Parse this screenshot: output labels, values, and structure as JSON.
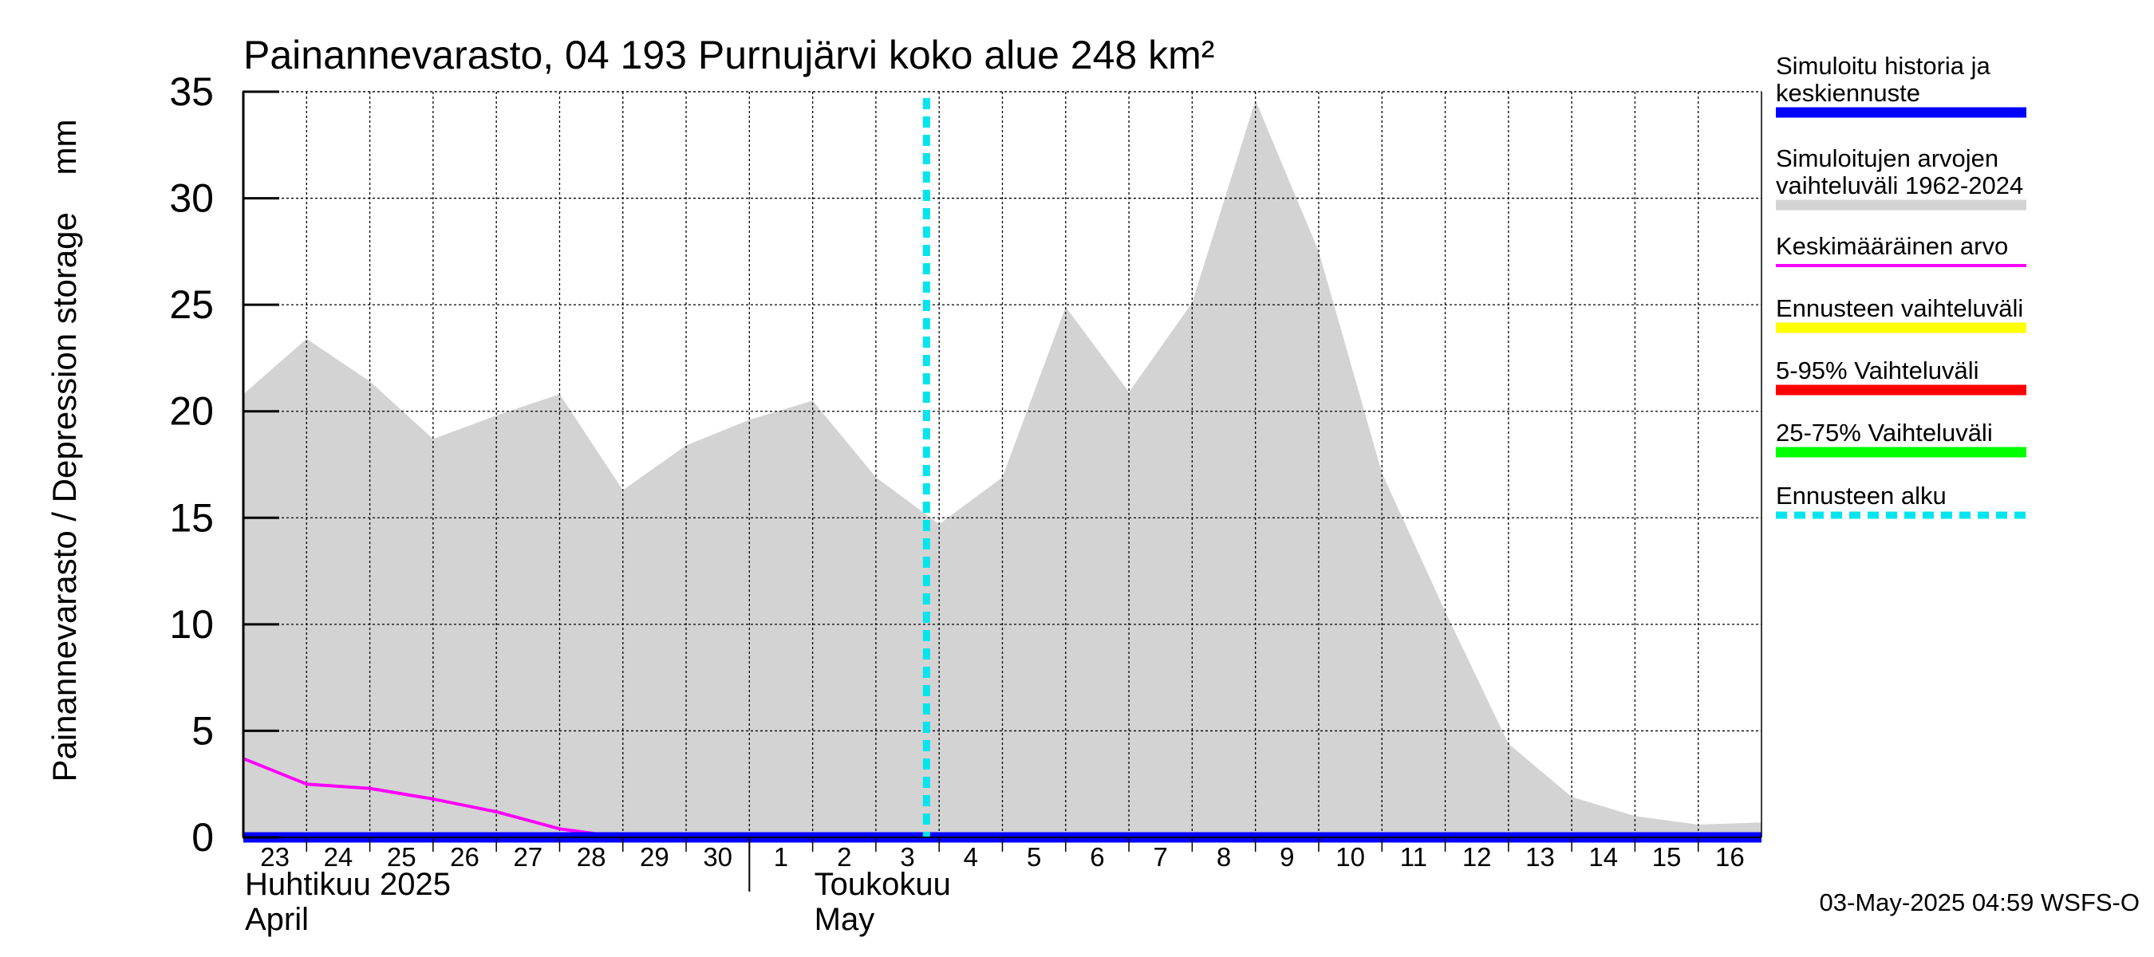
{
  "chart_data": {
    "type": "area",
    "title": "Painannevarasto, 04 193 Purnujärvi koko alue 248 km²",
    "ylabel": "Painannevarasto / Depression storage    mm",
    "ylim": [
      0,
      35
    ],
    "yticks": [
      0,
      5,
      10,
      15,
      20,
      25,
      30,
      35
    ],
    "x_labels": [
      "23",
      "24",
      "25",
      "26",
      "27",
      "28",
      "29",
      "30",
      "1",
      "2",
      "3",
      "4",
      "5",
      "6",
      "7",
      "8",
      "9",
      "10",
      "11",
      "12",
      "13",
      "14",
      "15",
      "16"
    ],
    "month_labels": [
      {
        "fi": "Huhtikuu  2025",
        "en": "April"
      },
      {
        "fi": "Toukokuu",
        "en": "May"
      }
    ],
    "series": [
      {
        "name": "Simuloitujen arvojen vaihteluväli 1962-2024",
        "color": "#d3d3d3",
        "kind": "range",
        "upper": [
          20.8,
          23.4,
          21.4,
          18.7,
          19.8,
          20.8,
          16.3,
          18.4,
          19.6,
          20.5,
          16.9,
          14.7,
          16.9,
          24.9,
          20.9,
          25.1,
          34.6,
          27.5,
          17.1,
          10.6,
          4.4,
          1.9,
          1.0,
          0.6,
          0.7
        ],
        "lower": [
          0,
          0,
          0,
          0,
          0,
          0,
          0,
          0,
          0,
          0,
          0,
          0,
          0,
          0,
          0,
          0,
          0,
          0,
          0,
          0,
          0,
          0,
          0,
          0,
          0
        ]
      },
      {
        "name": "Keskimääräinen arvo",
        "color": "#ff00ff",
        "kind": "line",
        "values": [
          3.7,
          2.5,
          2.3,
          1.8,
          1.2,
          0.4,
          0.0,
          0.0,
          0.0,
          0.0,
          0.0,
          0.0,
          0.0,
          0.0,
          0.0,
          0.0,
          0.0,
          0.0,
          0.0,
          0.0,
          0.0,
          0.0,
          0.0,
          0.0,
          0.0
        ]
      },
      {
        "name": "Simuloitu historia ja keskiennuste",
        "color": "#0000ff",
        "kind": "line",
        "values": [
          0,
          0,
          0,
          0,
          0,
          0,
          0,
          0,
          0,
          0,
          0,
          0,
          0,
          0,
          0,
          0,
          0,
          0,
          0,
          0,
          0,
          0,
          0,
          0,
          0
        ]
      }
    ],
    "forecast_start_day": 10.8,
    "legend": [
      {
        "label": "Simuloitu historia ja keskiennuste",
        "color": "#0000ff",
        "style": "thick"
      },
      {
        "label": "Simuloitujen arvojen vaihteluväli 1962-2024",
        "color": "#d3d3d3",
        "style": "thick"
      },
      {
        "label": "Keskimääräinen arvo",
        "color": "#ff00ff",
        "style": "thin"
      },
      {
        "label": "Ennusteen vaihteluväli",
        "color": "#ffff00",
        "style": "thick"
      },
      {
        "label": "5-95% Vaihteluväli",
        "color": "#ff0000",
        "style": "thick"
      },
      {
        "label": "25-75% Vaihteluväli",
        "color": "#00ff00",
        "style": "thick"
      },
      {
        "label": "Ennusteen alku",
        "color": "#00e5ee",
        "style": "dashed"
      }
    ],
    "footer": "03-May-2025 04:59 WSFS-O"
  }
}
